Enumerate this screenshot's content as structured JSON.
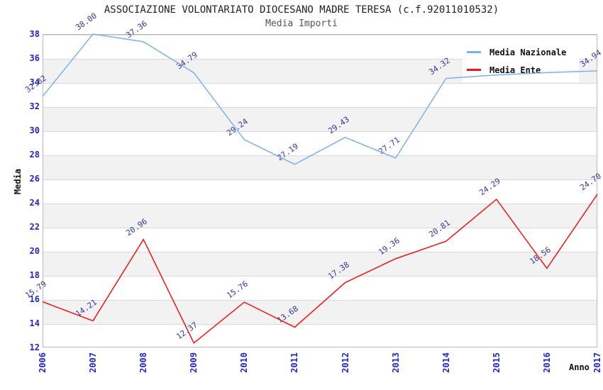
{
  "title": "ASSOCIAZIONE VOLONTARIATO DIOCESANO MADRE TERESA (c.f.92011010532)",
  "subtitle": "Media Importi",
  "axes": {
    "x_title": "Anno",
    "y_title": "Media",
    "y_ticks": [
      38,
      36,
      34,
      32,
      30,
      28,
      26,
      24,
      22,
      20,
      18,
      16,
      14,
      12
    ],
    "x_ticks": [
      "2006",
      "2007",
      "2008",
      "2009",
      "2010",
      "2011",
      "2012",
      "2013",
      "2014",
      "2015",
      "2016",
      "2017"
    ]
  },
  "legend": {
    "position": "top-right",
    "items": [
      {
        "label": "Media Nazionale",
        "color": "#7db1e8"
      },
      {
        "label": "Media Ente",
        "color": "#f51414"
      }
    ]
  },
  "colors": {
    "axis_tick_text": "#2424cd",
    "data_label_text": "#35359b",
    "band_fill": "#f2f2f2",
    "gridline": "#d9d9d9",
    "plot_border": "#b9b9b9"
  },
  "chart_data": {
    "type": "line",
    "title": "ASSOCIAZIONE VOLONTARIATO DIOCESANO MADRE TERESA (c.f.92011010532)",
    "subtitle": "Media Importi",
    "xlabel": "Anno",
    "ylabel": "Media",
    "x": [
      2006,
      2007,
      2008,
      2009,
      2010,
      2011,
      2012,
      2013,
      2014,
      2015,
      2016,
      2017
    ],
    "ylim": [
      12,
      38
    ],
    "grid": "alternating-horizontal-bands",
    "legend_position": "top-right",
    "series": [
      {
        "name": "Media Nazionale",
        "color": "#7db1e8",
        "values": [
          32.82,
          38.0,
          37.36,
          34.79,
          29.24,
          27.19,
          29.43,
          27.71,
          34.32,
          34.6,
          34.8,
          34.94
        ],
        "labels": [
          "32.82",
          "38.00",
          "37.36",
          "34.79",
          "29.24",
          "27.19",
          "29.43",
          "27.71",
          "34.32",
          null,
          null,
          "34.94"
        ]
      },
      {
        "name": "Media Ente",
        "color": "#f51414",
        "values": [
          15.79,
          14.21,
          20.96,
          12.37,
          15.76,
          13.68,
          17.38,
          19.36,
          20.81,
          24.29,
          18.56,
          24.7
        ],
        "labels": [
          "15.79",
          "14.21",
          "20.96",
          "12.37",
          "15.76",
          "13.68",
          "17.38",
          "19.36",
          "20.81",
          "24.29",
          "18.56",
          "24.70"
        ]
      }
    ]
  }
}
